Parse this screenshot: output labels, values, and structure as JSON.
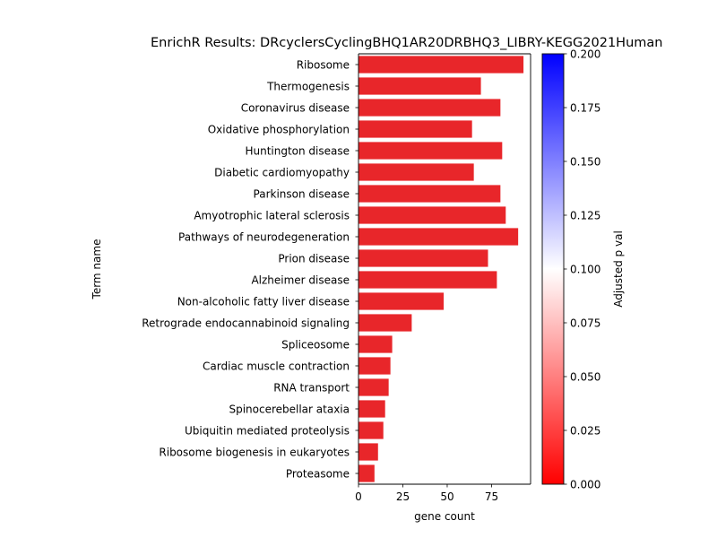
{
  "chart_data": {
    "type": "bar",
    "orientation": "horizontal",
    "title": "EnrichR Results: DRcyclersCyclingBHQ1AR20DRBHQ3_LIBRY-KEGG2021Human",
    "xlabel": "gene count",
    "ylabel": "Term name",
    "xlim": [
      0,
      97
    ],
    "xticks": [
      "0",
      "25",
      "50",
      "75"
    ],
    "categories": [
      "Ribosome",
      "Thermogenesis",
      "Coronavirus disease",
      "Oxidative phosphorylation",
      "Huntington disease",
      "Diabetic cardiomyopathy",
      "Parkinson disease",
      "Amyotrophic lateral sclerosis",
      "Pathways of neurodegeneration",
      "Prion disease",
      "Alzheimer disease",
      "Non-alcoholic fatty liver disease",
      "Retrograde endocannabinoid signaling",
      "Spliceosome",
      "Cardiac muscle contraction",
      "RNA transport",
      "Spinocerebellar ataxia",
      "Ubiquitin mediated proteolysis",
      "Ribosome biogenesis in eukaryotes",
      "Proteasome"
    ],
    "values": [
      93,
      69,
      80,
      64,
      81,
      65,
      80,
      83,
      90,
      73,
      78,
      48,
      30,
      19,
      18,
      17,
      15,
      14,
      11,
      9
    ],
    "bar_color": "#e8262a",
    "colorbar": {
      "label": "Adjusted p val",
      "range": [
        0,
        0.2
      ],
      "ticks": [
        "0.000",
        "0.025",
        "0.050",
        "0.075",
        "0.100",
        "0.125",
        "0.150",
        "0.175",
        "0.200"
      ],
      "colormap": [
        "#ff0000",
        "#ffffff",
        "#0000ff"
      ]
    },
    "grid": false
  }
}
